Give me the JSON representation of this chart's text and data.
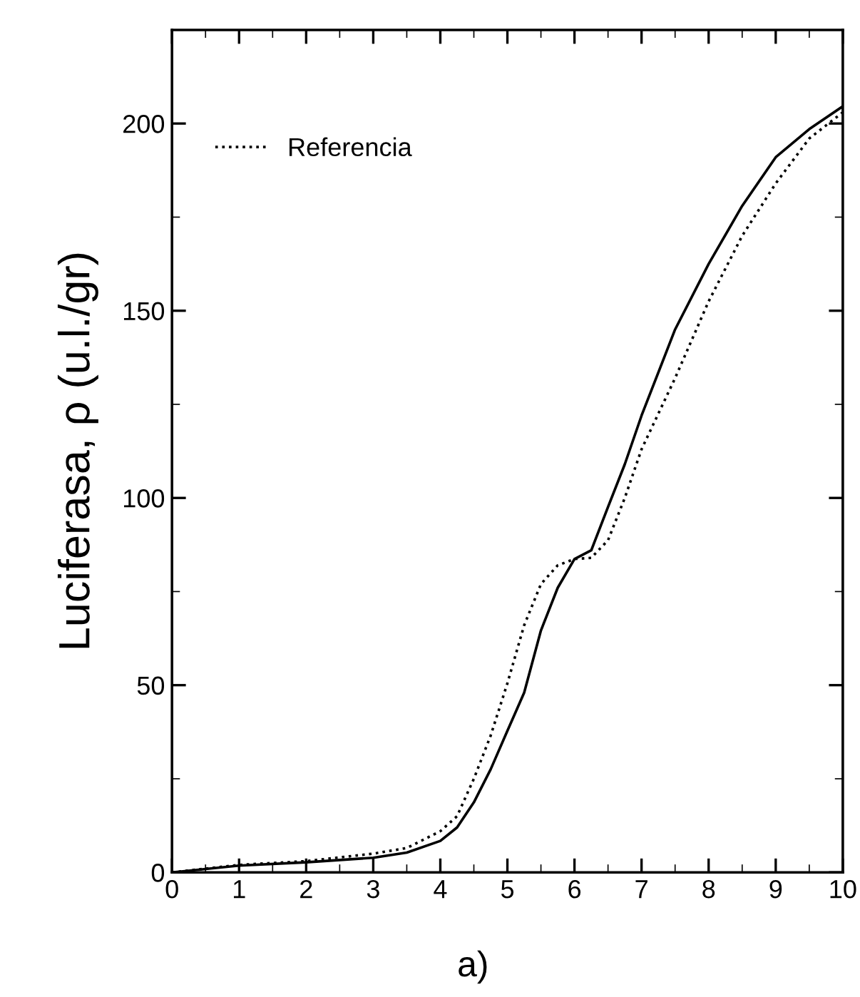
{
  "chart_data": {
    "type": "line",
    "ylabel": "Luciferasa, ρ (u.l./gr)",
    "annotations": [
      "a)"
    ],
    "x": [
      0,
      1,
      2,
      3,
      3.5,
      4,
      4.25,
      4.5,
      4.75,
      5,
      5.25,
      5.5,
      5.75,
      6,
      6.25,
      6.5,
      6.75,
      7,
      7.5,
      8,
      8.5,
      9,
      9.5,
      10
    ],
    "series": [
      {
        "color": "#000000",
        "line_style": "solid",
        "values": [
          0,
          1.8,
          2.7,
          3.9,
          5.3,
          8.4,
          12,
          18.7,
          27.5,
          37.8,
          48,
          64.6,
          76,
          83.7,
          86,
          97.6,
          109,
          122,
          145,
          162.5,
          178,
          191,
          198.5,
          204.6
        ]
      },
      {
        "name": "Referencia",
        "color": "#000000",
        "line_style": "dotted",
        "values": [
          0,
          2,
          3,
          5,
          6.5,
          11,
          15,
          25,
          36.5,
          50.5,
          66,
          77,
          82,
          83.7,
          84,
          88.7,
          100,
          113,
          132,
          152.5,
          170,
          184,
          196,
          203
        ]
      }
    ],
    "xlim": [
      0,
      10
    ],
    "ylim": [
      0,
      225
    ],
    "xticks": [
      0,
      {
        "value": 0.5,
        "label": null
      },
      1,
      {
        "value": 1.5,
        "label": null
      },
      2,
      {
        "value": 2.5,
        "label": null
      },
      3,
      {
        "value": 3.5,
        "label": null
      },
      4,
      {
        "value": 4.5,
        "label": null
      },
      5,
      {
        "value": 5.5,
        "label": null
      },
      6,
      {
        "value": 6.5,
        "label": null
      },
      7,
      {
        "value": 7.5,
        "label": null
      },
      8,
      {
        "value": 8.5,
        "label": null
      },
      9,
      {
        "value": 9.5,
        "label": null
      },
      10
    ],
    "yticks": [
      0,
      {
        "value": 25,
        "label": null
      },
      50,
      {
        "value": 75,
        "label": null
      },
      100,
      {
        "value": 125,
        "label": null
      },
      150,
      {
        "value": 175,
        "label": null
      },
      200,
      {
        "value": 225,
        "label": null
      }
    ],
    "legend": "top left",
    "grid": false
  }
}
